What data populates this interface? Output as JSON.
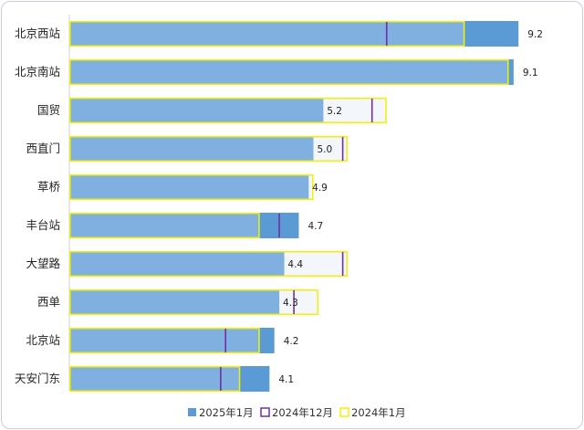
{
  "chart_data": {
    "type": "bar",
    "orientation": "horizontal",
    "title": "",
    "xlabel": "",
    "ylabel": "",
    "categories": [
      "北京西站",
      "北京南站",
      "国贸",
      "西直门",
      "草桥",
      "丰台站",
      "大望路",
      "西单",
      "北京站",
      "天安门东"
    ],
    "series": [
      {
        "name": "2025年1月",
        "marker": "bar",
        "values": [
          9.2,
          9.1,
          5.2,
          5.0,
          4.9,
          4.7,
          4.4,
          4.3,
          4.2,
          4.1
        ]
      },
      {
        "name": "2024年12月",
        "marker": "line",
        "values": [
          6.5,
          null,
          6.2,
          5.6,
          null,
          4.3,
          5.6,
          4.6,
          3.2,
          3.1
        ]
      },
      {
        "name": "2024年1月",
        "marker": "outline",
        "values": [
          8.1,
          9.0,
          6.5,
          5.7,
          5.0,
          3.9,
          5.7,
          5.1,
          3.9,
          3.5
        ]
      }
    ],
    "value_labels": [
      "9.2",
      "9.1",
      "5.2",
      "5.0",
      "4.9",
      "4.7",
      "4.4",
      "4.3",
      "4.2",
      "4.1"
    ],
    "xlim": [
      0,
      10.5
    ],
    "grid": false,
    "legend": "bottom-center",
    "colors": {
      "bar_2025": "#5b9bd5",
      "bar_inner": "#7fb0e0",
      "line_2024_12": "#7030a0",
      "outline_2024_01": "#f2f200",
      "outline_fill": "#f3f6fa"
    }
  }
}
